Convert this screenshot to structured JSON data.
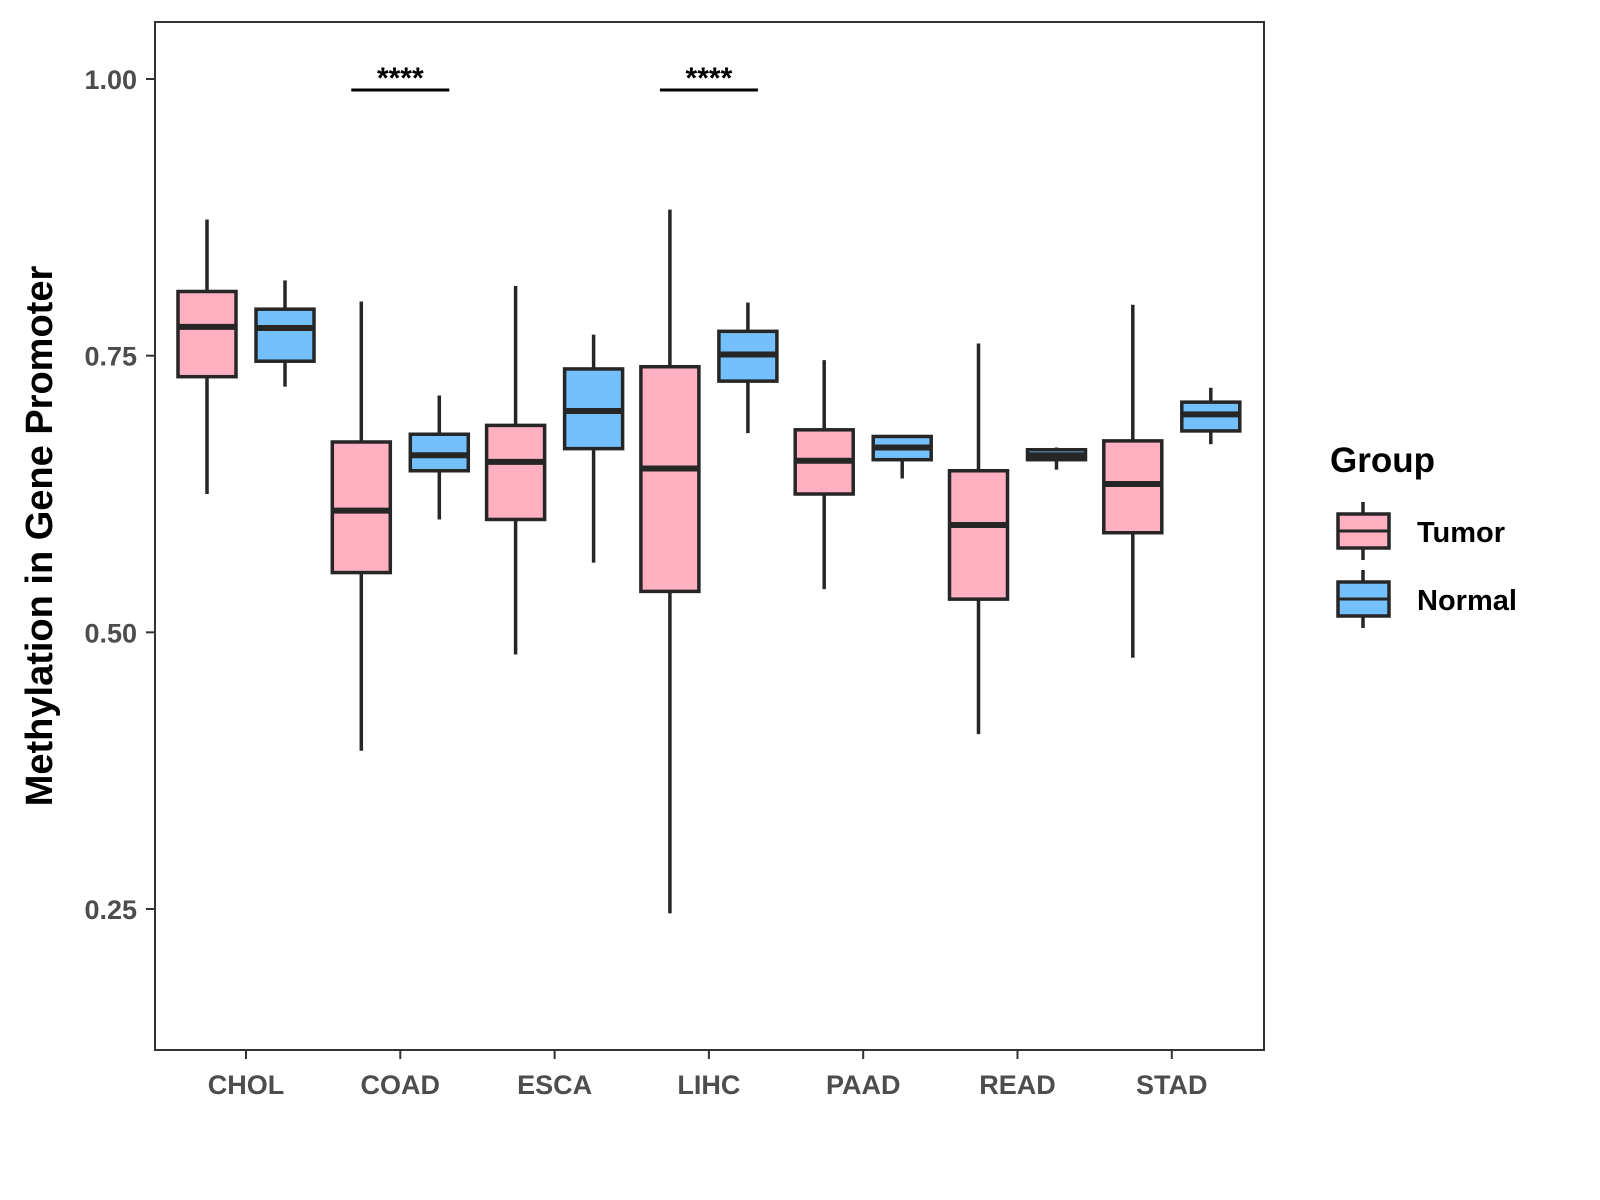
{
  "chart_data": {
    "type": "boxplot",
    "title": "",
    "xlabel": "",
    "ylabel": "Methylation in Gene Promoter",
    "ylim": [
      0.1226,
      1.0515
    ],
    "yticks": [
      "0.25",
      "0.50",
      "0.75",
      "1.00"
    ],
    "yticks_values": [
      0.25,
      0.5,
      0.75,
      1.0
    ],
    "categories": [
      "CHOL",
      "COAD",
      "ESCA",
      "LIHC",
      "PAAD",
      "READ",
      "STAD"
    ],
    "legend": {
      "title": "Group",
      "placement": "right"
    },
    "series": [
      {
        "name": "Tumor",
        "color": "#FFB0C1",
        "boxes": [
          {
            "min": 0.625,
            "q1": 0.731,
            "median": 0.776,
            "q3": 0.808,
            "max": 0.873
          },
          {
            "min": 0.393,
            "q1": 0.554,
            "median": 0.61,
            "q3": 0.672,
            "max": 0.799
          },
          {
            "min": 0.48,
            "q1": 0.602,
            "median": 0.654,
            "q3": 0.687,
            "max": 0.813
          },
          {
            "min": 0.246,
            "q1": 0.537,
            "median": 0.648,
            "q3": 0.74,
            "max": 0.882
          },
          {
            "min": 0.539,
            "q1": 0.625,
            "median": 0.655,
            "q3": 0.683,
            "max": 0.746
          },
          {
            "min": 0.408,
            "q1": 0.53,
            "median": 0.597,
            "q3": 0.646,
            "max": 0.761
          },
          {
            "min": 0.477,
            "q1": 0.59,
            "median": 0.634,
            "q3": 0.673,
            "max": 0.796
          }
        ]
      },
      {
        "name": "Normal",
        "color": "#74C0FC",
        "boxes": [
          {
            "min": 0.722,
            "q1": 0.745,
            "median": 0.775,
            "q3": 0.792,
            "max": 0.818
          },
          {
            "min": 0.602,
            "q1": 0.646,
            "median": 0.66,
            "q3": 0.679,
            "max": 0.714
          },
          {
            "min": 0.563,
            "q1": 0.666,
            "median": 0.7,
            "q3": 0.738,
            "max": 0.769
          },
          {
            "min": 0.68,
            "q1": 0.727,
            "median": 0.751,
            "q3": 0.772,
            "max": 0.798
          },
          {
            "min": 0.639,
            "q1": 0.656,
            "median": 0.667,
            "q3": 0.677,
            "max": 0.678
          },
          {
            "min": 0.647,
            "q1": 0.656,
            "median": 0.66,
            "q3": 0.665,
            "max": 0.667
          },
          {
            "min": 0.67,
            "q1": 0.682,
            "median": 0.697,
            "q3": 0.708,
            "max": 0.721
          }
        ]
      }
    ],
    "annotations": [
      {
        "category": "COAD",
        "label": "****",
        "y": 0.99
      },
      {
        "category": "LIHC",
        "label": "****",
        "y": 0.99
      }
    ]
  }
}
